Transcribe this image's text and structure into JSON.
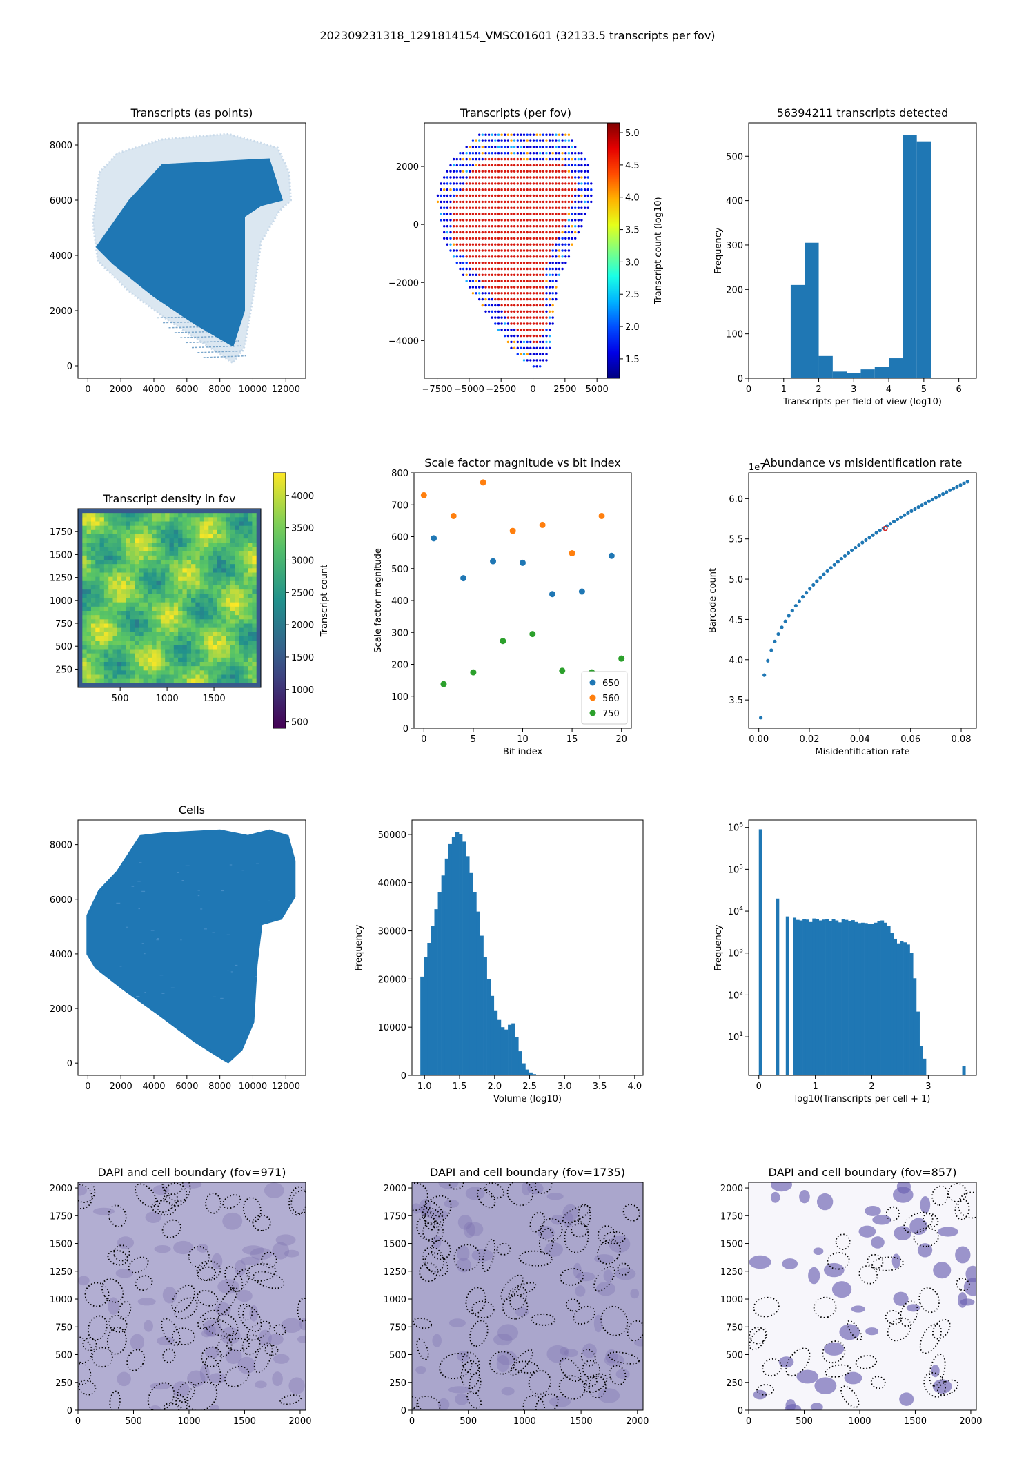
{
  "suptitle": "202309231318_1291814154_VMSC01601 (32133.5 transcripts per fov)",
  "colors": {
    "blue": "#1f77b4",
    "orange": "#ff7f0e",
    "green": "#2ca02c",
    "red": "#d62728",
    "dapi": "#8a80b8"
  },
  "chart_data": [
    {
      "id": "p1",
      "type": "scatter",
      "title": "Transcripts (as points)",
      "xlim": [
        -600,
        13200
      ],
      "ylim": [
        -450,
        8800
      ],
      "xticks": [
        0,
        2000,
        4000,
        6000,
        8000,
        10000,
        12000
      ],
      "yticks": [
        0,
        2000,
        4000,
        6000,
        8000
      ],
      "xticklabels": [
        "0",
        "2000",
        "4000",
        "6000",
        "8000",
        "10000",
        "12000"
      ],
      "yticklabels": [
        "0",
        "2000",
        "4000",
        "6000",
        "8000"
      ],
      "outer_region": [
        [
          700,
          7000
        ],
        [
          1800,
          7700
        ],
        [
          4500,
          8200
        ],
        [
          8500,
          8400
        ],
        [
          11500,
          7900
        ],
        [
          12200,
          7000
        ],
        [
          12300,
          6000
        ],
        [
          11600,
          5600
        ],
        [
          10500,
          4500
        ],
        [
          10100,
          2800
        ],
        [
          9500,
          700
        ],
        [
          8800,
          100
        ],
        [
          7800,
          500
        ],
        [
          4500,
          1800
        ],
        [
          2500,
          2700
        ],
        [
          600,
          3800
        ],
        [
          300,
          5200
        ]
      ],
      "inner_region": [
        [
          500,
          4300
        ],
        [
          2500,
          6000
        ],
        [
          4500,
          7300
        ],
        [
          11000,
          7500
        ],
        [
          11800,
          6000
        ],
        [
          10500,
          5800
        ],
        [
          9500,
          5400
        ],
        [
          9500,
          2000
        ],
        [
          8800,
          700
        ],
        [
          6500,
          1500
        ],
        [
          4000,
          2500
        ],
        [
          1500,
          3700
        ]
      ]
    },
    {
      "id": "p2",
      "type": "scatter",
      "title": "Transcripts (per fov)",
      "xlim": [
        -8500,
        5800
      ],
      "ylim": [
        -5300,
        3500
      ],
      "xticks": [
        -7500,
        -5000,
        -2500,
        0,
        2500,
        5000
      ],
      "yticks": [
        -4000,
        -2000,
        0,
        2000
      ],
      "xticklabels": [
        "−7500",
        "−5000",
        "−2500",
        "0",
        "2500",
        "5000"
      ],
      "yticklabels": [
        "−4000",
        "−2000",
        "0",
        "2000"
      ],
      "outline": [
        [
          -4000,
          3200
        ],
        [
          -2000,
          3200
        ],
        [
          -500,
          3200
        ],
        [
          600,
          3300
        ],
        [
          2700,
          3200
        ],
        [
          3200,
          2800
        ],
        [
          4500,
          2100
        ],
        [
          4600,
          800
        ],
        [
          3500,
          -400
        ],
        [
          2000,
          -2000
        ],
        [
          1500,
          -3800
        ],
        [
          1200,
          -4700
        ],
        [
          300,
          -5000
        ],
        [
          -1300,
          -4500
        ],
        [
          -3000,
          -3500
        ],
        [
          -5000,
          -2200
        ],
        [
          -7000,
          -500
        ],
        [
          -7600,
          1000
        ],
        [
          -6500,
          2200
        ]
      ],
      "inner_outline": [
        [
          -3800,
          2300
        ],
        [
          2200,
          2200
        ],
        [
          3400,
          1400
        ],
        [
          3200,
          900
        ],
        [
          2200,
          -300
        ],
        [
          900,
          -1500
        ],
        [
          1100,
          -3500
        ],
        [
          400,
          -4200
        ],
        [
          -1100,
          -3800
        ],
        [
          -3000,
          -2600
        ],
        [
          -6200,
          -600
        ],
        [
          -6500,
          600
        ],
        [
          -5000,
          1700
        ]
      ],
      "colorbar": {
        "label": "Transcript count (log10)",
        "min": 1.2,
        "max": 5.15,
        "ticks": [
          1.5,
          2.0,
          2.5,
          3.0,
          3.5,
          4.0,
          4.5,
          5.0
        ],
        "ticklabels": [
          "1.5",
          "2.0",
          "2.5",
          "3.0",
          "3.5",
          "4.0",
          "4.5",
          "5.0"
        ]
      }
    },
    {
      "id": "p3",
      "type": "bar",
      "title": "56394211 transcripts detected",
      "xlabel": "Transcripts per field of view (log10)",
      "ylabel": "Frequency",
      "xlim": [
        0,
        6.5
      ],
      "ylim": [
        0,
        575
      ],
      "xticks": [
        0,
        1,
        2,
        3,
        4,
        5,
        6
      ],
      "yticks": [
        0,
        100,
        200,
        300,
        400,
        500
      ],
      "xticklabels": [
        "0",
        "1",
        "2",
        "3",
        "4",
        "5",
        "6"
      ],
      "yticklabels": [
        "0",
        "100",
        "200",
        "300",
        "400",
        "500"
      ],
      "bin_edges": [
        1.2,
        1.6,
        2.0,
        2.4,
        2.8,
        3.2,
        3.6,
        4.0,
        4.4,
        4.8,
        5.2
      ],
      "values": [
        210,
        305,
        50,
        15,
        12,
        20,
        25,
        45,
        548,
        532
      ]
    },
    {
      "id": "p4",
      "type": "heatmap",
      "title": "Transcript density in fov",
      "xlim": [
        50,
        2000
      ],
      "ylim": [
        50,
        2000
      ],
      "xticks": [
        500,
        1000,
        1500
      ],
      "yticks": [
        250,
        500,
        750,
        1000,
        1250,
        1500,
        1750
      ],
      "xticklabels": [
        "500",
        "1000",
        "1500"
      ],
      "yticklabels": [
        "250",
        "500",
        "750",
        "1000",
        "1250",
        "1500",
        "1750"
      ],
      "colorbar": {
        "label": "Transcript count",
        "min": 400,
        "max": 4350,
        "ticks": [
          500,
          1000,
          1500,
          2000,
          2500,
          3000,
          3500,
          4000
        ],
        "ticklabels": [
          "500",
          "1000",
          "1500",
          "2000",
          "2500",
          "3000",
          "3500",
          "4000"
        ]
      }
    },
    {
      "id": "p5",
      "type": "scatter",
      "title": "Scale factor magnitude vs bit index",
      "xlabel": "Bit index",
      "ylabel": "Scale factor magnitude",
      "xlim": [
        -1,
        21
      ],
      "ylim": [
        0,
        800
      ],
      "xticks": [
        0,
        5,
        10,
        15,
        20
      ],
      "yticks": [
        0,
        100,
        200,
        300,
        400,
        500,
        600,
        700,
        800
      ],
      "xticklabels": [
        "0",
        "5",
        "10",
        "15",
        "20"
      ],
      "yticklabels": [
        "0",
        "100",
        "200",
        "300",
        "400",
        "500",
        "600",
        "700",
        "800"
      ],
      "series": [
        {
          "name": "650",
          "x": [
            1,
            4,
            7,
            10,
            13,
            16,
            19
          ],
          "y": [
            595,
            470,
            523,
            518,
            420,
            428,
            540
          ]
        },
        {
          "name": "560",
          "x": [
            0,
            3,
            6,
            9,
            12,
            15,
            18
          ],
          "y": [
            730,
            665,
            770,
            618,
            637,
            548,
            665
          ]
        },
        {
          "name": "750",
          "x": [
            2,
            5,
            8,
            11,
            14,
            17,
            20
          ],
          "y": [
            138,
            175,
            273,
            295,
            180,
            175,
            218
          ]
        }
      ],
      "legend_loc": "lower right"
    },
    {
      "id": "p6",
      "type": "scatter",
      "title": "Abundance vs misidentification rate",
      "xlabel": "Misidentification rate",
      "ylabel": "Barcode count",
      "offset_text": "1e7",
      "xlim": [
        -0.004,
        0.086
      ],
      "ylim": [
        3.15,
        6.32
      ],
      "xticks": [
        0.0,
        0.02,
        0.04,
        0.06,
        0.08
      ],
      "yticks": [
        3.5,
        4.0,
        4.5,
        5.0,
        5.5,
        6.0
      ],
      "xticklabels": [
        "0.00",
        "0.02",
        "0.04",
        "0.06",
        "0.08"
      ],
      "yticklabels": [
        "3.5",
        "4.0",
        "4.5",
        "5.0",
        "5.5",
        "6.0"
      ],
      "curve": {
        "x0": 0.0008,
        "x1": 0.0825,
        "y0": 3.28,
        "y1": 6.21,
        "n": 60
      },
      "highlight": {
        "x": 0.05,
        "y": 5.63
      }
    },
    {
      "id": "p7",
      "type": "scatter",
      "title": "Cells",
      "xlim": [
        -600,
        13200
      ],
      "ylim": [
        -450,
        8900
      ],
      "xticks": [
        0,
        2000,
        4000,
        6000,
        8000,
        10000,
        12000
      ],
      "yticks": [
        0,
        2000,
        4000,
        6000,
        8000
      ],
      "xticklabels": [
        "0",
        "2000",
        "4000",
        "6000",
        "8000",
        "10000",
        "12000"
      ],
      "yticklabels": [
        "0",
        "2000",
        "4000",
        "6000",
        "8000"
      ],
      "region": [
        [
          1800,
          7000
        ],
        [
          3200,
          8300
        ],
        [
          4700,
          8400
        ],
        [
          8000,
          8500
        ],
        [
          9700,
          8300
        ],
        [
          11000,
          8500
        ],
        [
          12100,
          8300
        ],
        [
          12500,
          7400
        ],
        [
          12500,
          6100
        ],
        [
          11700,
          5300
        ],
        [
          10500,
          5100
        ],
        [
          10200,
          3600
        ],
        [
          10000,
          1500
        ],
        [
          9300,
          500
        ],
        [
          8500,
          50
        ],
        [
          7800,
          300
        ],
        [
          6500,
          800
        ],
        [
          4300,
          1800
        ],
        [
          2200,
          2700
        ],
        [
          500,
          3500
        ],
        [
          0,
          4000
        ],
        [
          0,
          5400
        ],
        [
          700,
          6300
        ]
      ]
    },
    {
      "id": "p8",
      "type": "bar",
      "title": "",
      "xlabel": "Volume (log10)",
      "ylabel": "Frequency",
      "xlim": [
        0.82,
        4.12
      ],
      "ylim": [
        0,
        53000
      ],
      "xticks": [
        1.0,
        1.5,
        2.0,
        2.5,
        3.0,
        3.5,
        4.0
      ],
      "yticks": [
        0,
        10000,
        20000,
        30000,
        40000,
        50000
      ],
      "xticklabels": [
        "1.0",
        "1.5",
        "2.0",
        "2.5",
        "3.0",
        "3.5",
        "4.0"
      ],
      "yticklabels": [
        "0",
        "10000",
        "20000",
        "30000",
        "40000",
        "50000"
      ],
      "bin_start": 0.94,
      "bin_width": 0.05,
      "values": [
        20500,
        24500,
        27500,
        31000,
        34500,
        38000,
        41500,
        45000,
        48000,
        49500,
        50500,
        50000,
        48500,
        45500,
        42000,
        38000,
        34000,
        29000,
        24500,
        20000,
        16500,
        13500,
        11500,
        10000,
        9500,
        10500,
        10800,
        8000,
        5000,
        2500,
        1200,
        600,
        250,
        100,
        50
      ]
    },
    {
      "id": "p9",
      "type": "bar",
      "title": "",
      "xlabel": "log10(Transcripts per cell + 1)",
      "ylabel": "Frequency",
      "yscale": "log",
      "xlim": [
        -0.18,
        3.85
      ],
      "ylim": [
        1.2,
        1500000.0
      ],
      "xticks": [
        0,
        1,
        2,
        3
      ],
      "yticks": [
        10,
        100,
        1000,
        10000,
        100000,
        1000000
      ],
      "xticklabels": [
        "0",
        "1",
        "2",
        "3"
      ],
      "ytick_base": "10",
      "ytick_exp": [
        "1",
        "2",
        "3",
        "4",
        "5",
        "6"
      ],
      "bin_width": 0.0575,
      "bars": [
        [
          0.0,
          900000
        ],
        [
          0.3,
          20000
        ],
        [
          0.477,
          7500
        ]
      ],
      "bin_start": 0.602,
      "values": [
        7000,
        6200,
        6000,
        6500,
        6300,
        5500,
        6700,
        6600,
        6000,
        6300,
        6500,
        5800,
        6600,
        6000,
        5400,
        6500,
        6200,
        5700,
        6100,
        5500,
        5200,
        5300,
        5200,
        5000,
        5000,
        5300,
        5800,
        6000,
        5300,
        4500,
        3000,
        2200,
        1700,
        1900,
        1800,
        1600,
        1000,
        250,
        40,
        6,
        3
      ],
      "end_bars": [
        [
          3.6,
          2
        ]
      ]
    },
    {
      "id": "p10",
      "type": "heatmap",
      "title": "DAPI and cell boundary (fov=971)",
      "xlim": [
        0,
        2050
      ],
      "ylim": [
        0,
        2050
      ],
      "xticks": [
        0,
        500,
        1000,
        1500,
        2000
      ],
      "yticks": [
        0,
        250,
        500,
        750,
        1000,
        1250,
        1500,
        1750,
        2000
      ],
      "xticklabels": [
        "0",
        "500",
        "1000",
        "1500",
        "2000"
      ],
      "yticklabels": [
        "0",
        "250",
        "500",
        "750",
        "1000",
        "1250",
        "1500",
        "1750",
        "2000"
      ]
    },
    {
      "id": "p11",
      "type": "heatmap",
      "title": "DAPI and cell boundary (fov=1735)",
      "xlim": [
        0,
        2050
      ],
      "ylim": [
        0,
        2050
      ],
      "xticks": [
        0,
        500,
        1000,
        1500,
        2000
      ],
      "yticks": [
        0,
        250,
        500,
        750,
        1000,
        1250,
        1500,
        1750,
        2000
      ],
      "xticklabels": [
        "0",
        "500",
        "1000",
        "1500",
        "2000"
      ],
      "yticklabels": [
        "0",
        "250",
        "500",
        "750",
        "1000",
        "1250",
        "1500",
        "1750",
        "2000"
      ]
    },
    {
      "id": "p12",
      "type": "heatmap",
      "title": "DAPI and cell boundary (fov=857)",
      "xlim": [
        0,
        2050
      ],
      "ylim": [
        0,
        2050
      ],
      "xticks": [
        0,
        500,
        1000,
        1500,
        2000
      ],
      "yticks": [
        0,
        250,
        500,
        750,
        1000,
        1250,
        1500,
        1750,
        2000
      ],
      "xticklabels": [
        "0",
        "500",
        "1000",
        "1500",
        "2000"
      ],
      "yticklabels": [
        "0",
        "250",
        "500",
        "750",
        "1000",
        "1250",
        "1500",
        "1750",
        "2000"
      ]
    }
  ]
}
